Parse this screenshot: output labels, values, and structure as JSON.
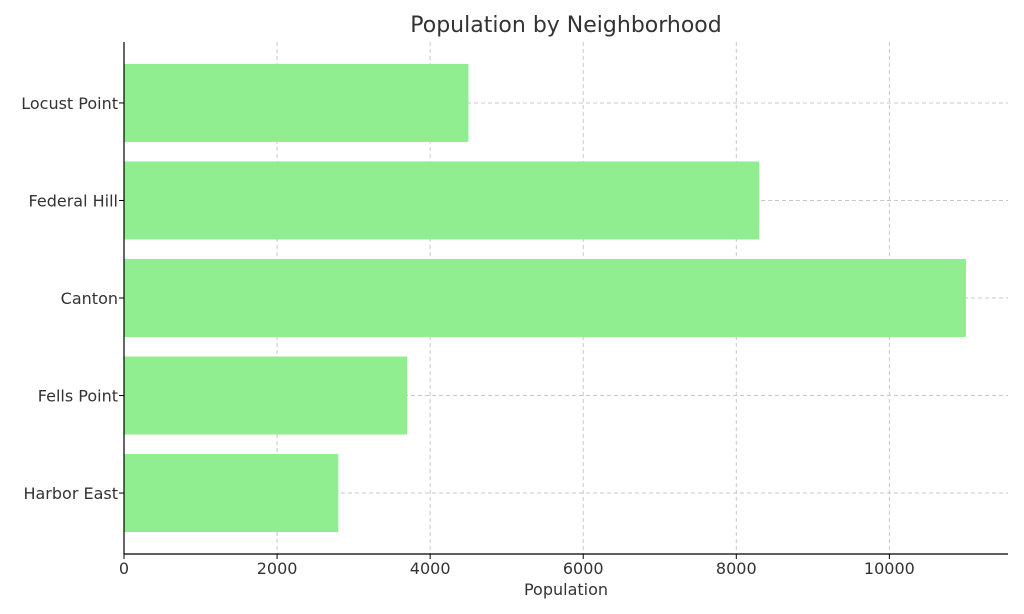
{
  "chart_data": {
    "type": "bar",
    "orientation": "horizontal",
    "title": "Population by Neighborhood",
    "xlabel": "Population",
    "ylabel": "",
    "categories": [
      "Harbor East",
      "Fells Point",
      "Canton",
      "Federal Hill",
      "Locust Point"
    ],
    "values": [
      2800,
      3700,
      11000,
      8300,
      4500
    ],
    "xlim": [
      0,
      11550
    ],
    "xticks": [
      0,
      2000,
      4000,
      6000,
      8000,
      10000
    ],
    "xtick_labels": [
      "0",
      "2000",
      "4000",
      "6000",
      "8000",
      "10000"
    ],
    "grid": true,
    "bar_color": "#90ee90"
  }
}
